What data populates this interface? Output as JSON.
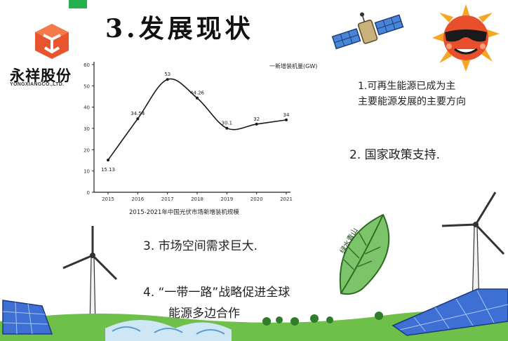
{
  "header": {
    "title": "3.发展现状",
    "logo_name": "永祥股份",
    "logo_sub": "YONGXIANGCO.,LTD."
  },
  "chart_data": {
    "type": "line",
    "title": "",
    "legend_label": "一新增装机量(GW)",
    "caption": "2015-2021年中国光伏市场新增装机规模",
    "categories": [
      "2015",
      "2016",
      "2017",
      "2018",
      "2019",
      "2020",
      "2021"
    ],
    "series": [
      {
        "name": "新增装机量(GW)",
        "values": [
          15.13,
          34.54,
          53,
          44.26,
          30.1,
          32,
          34
        ]
      }
    ],
    "point_labels": [
      "15.13",
      "34.54",
      "53",
      "44.26",
      "30.1",
      "32",
      "34"
    ],
    "y_ticks": [
      "0",
      "10",
      "20",
      "30",
      "40",
      "50",
      "60"
    ],
    "ylim": [
      0,
      60
    ],
    "grid": false
  },
  "points": {
    "p1_line1": "1.可再生能源已成为主",
    "p1_line2": "主要能源发展的主要方向",
    "p2": "2. 国家政策支持.",
    "p3": "3. 市场空间需求巨大.",
    "p4_line1": "4. “一带一路”战略促进全球",
    "p4_line2": "能源多边合作"
  },
  "decor": {
    "leaf_text": "绿水青山",
    "colors": {
      "grass": "#6fc04a",
      "sun": "#f5a623",
      "panel": "#3d6fd4",
      "logo": "#e8542f",
      "leaf": "#7cc46a"
    }
  }
}
